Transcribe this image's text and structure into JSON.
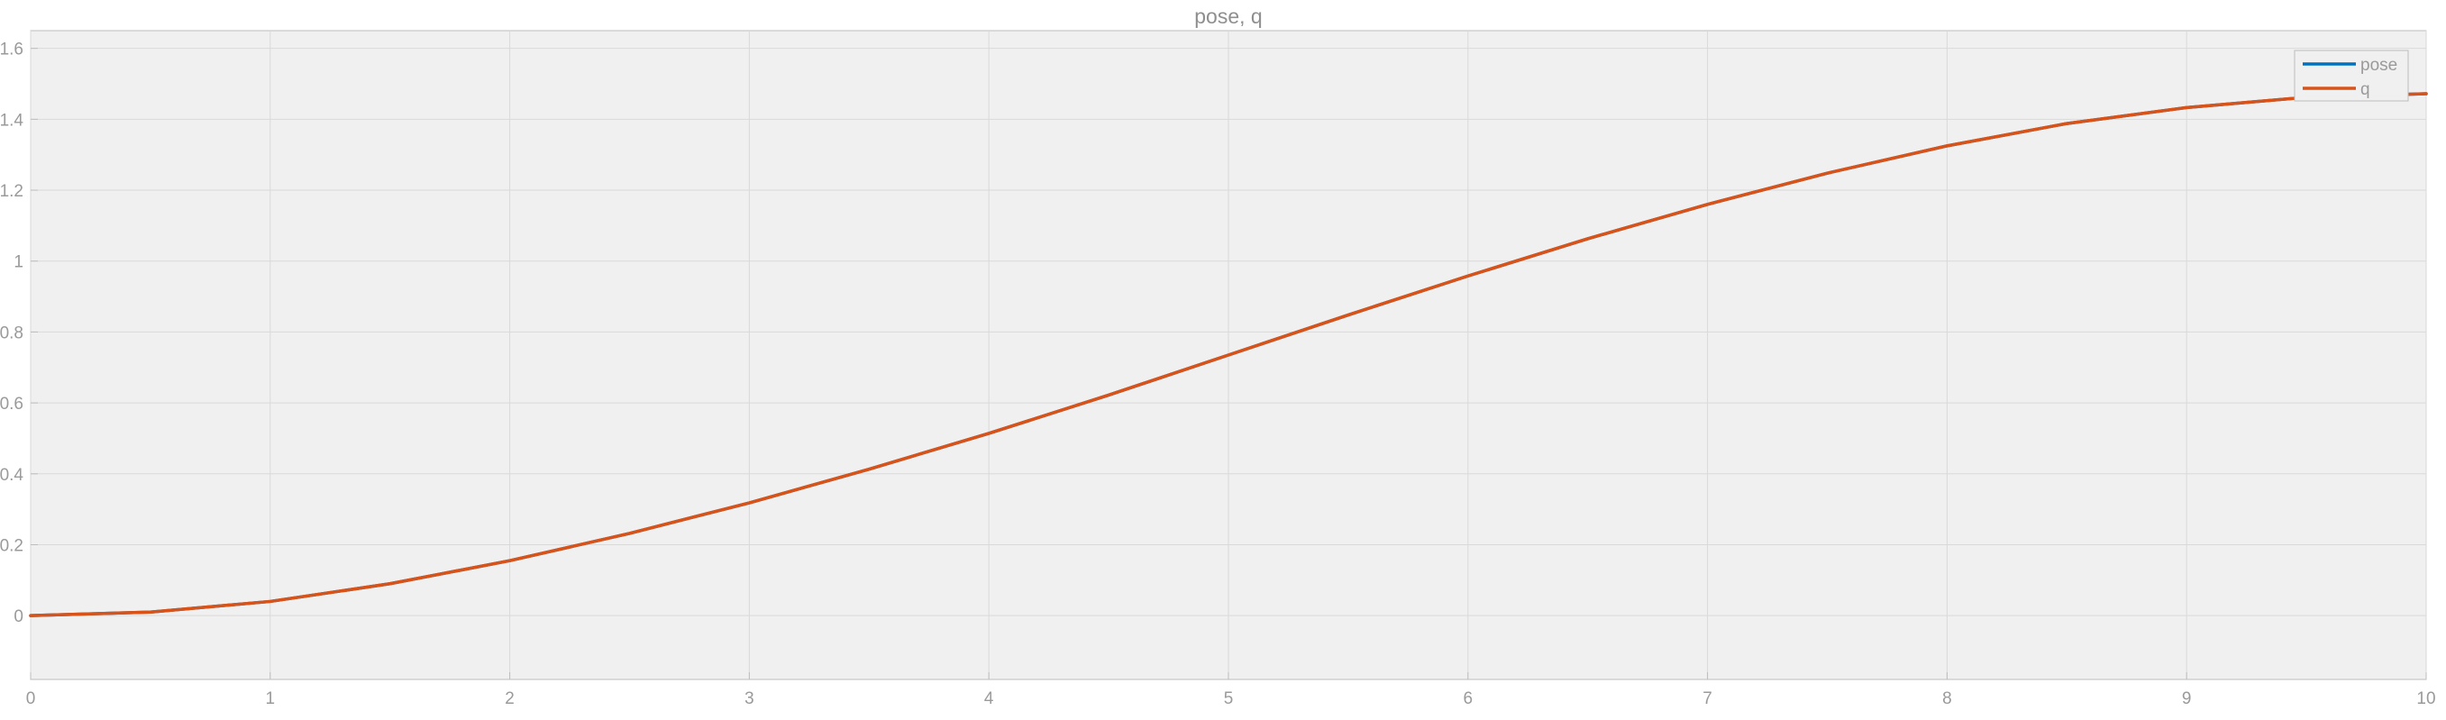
{
  "chart_data": {
    "type": "line",
    "title": "pose, q",
    "xlabel": "",
    "ylabel": "",
    "xlim": [
      0,
      10
    ],
    "ylim": [
      -0.18,
      1.65
    ],
    "xticks": [
      0,
      1,
      2,
      3,
      4,
      5,
      6,
      7,
      8,
      9,
      10
    ],
    "yticks": [
      0,
      0.2,
      0.4,
      0.6,
      0.8,
      1,
      1.2,
      1.4,
      1.6
    ],
    "xtick_labels": [
      "0",
      "1",
      "2",
      "3",
      "4",
      "5",
      "6",
      "7",
      "8",
      "9",
      "10"
    ],
    "ytick_labels": [
      "0",
      "0.2",
      "0.4",
      "0.6",
      "0.8",
      "1",
      "1.2",
      "1.4",
      "1.6"
    ],
    "grid": true,
    "legend_position": "top-right",
    "background_color": "#f0f0f0",
    "grid_color": "#d9d9d9",
    "axis_color": "#bdbdbd",
    "series": [
      {
        "name": "pose",
        "color": "#0072bd",
        "x": [
          0,
          0.5,
          1,
          1.5,
          2,
          2.5,
          3,
          3.5,
          4,
          4.5,
          5,
          5.5,
          6,
          6.5,
          7,
          7.5,
          8,
          8.5,
          9,
          9.5,
          10
        ],
        "y": [
          0,
          0.01,
          0.04,
          0.09,
          0.155,
          0.232,
          0.318,
          0.413,
          0.514,
          0.622,
          0.735,
          0.848,
          0.958,
          1.063,
          1.16,
          1.248,
          1.325,
          1.388,
          1.433,
          1.462,
          1.472
        ]
      },
      {
        "name": "q",
        "color": "#d95319",
        "x": [
          0,
          0.5,
          1,
          1.5,
          2,
          2.5,
          3,
          3.5,
          4,
          4.5,
          5,
          5.5,
          6,
          6.5,
          7,
          7.5,
          8,
          8.5,
          9,
          9.5,
          10
        ],
        "y": [
          0,
          0.01,
          0.04,
          0.09,
          0.155,
          0.232,
          0.318,
          0.413,
          0.514,
          0.622,
          0.735,
          0.848,
          0.958,
          1.063,
          1.16,
          1.248,
          1.325,
          1.388,
          1.433,
          1.462,
          1.472
        ]
      }
    ]
  }
}
